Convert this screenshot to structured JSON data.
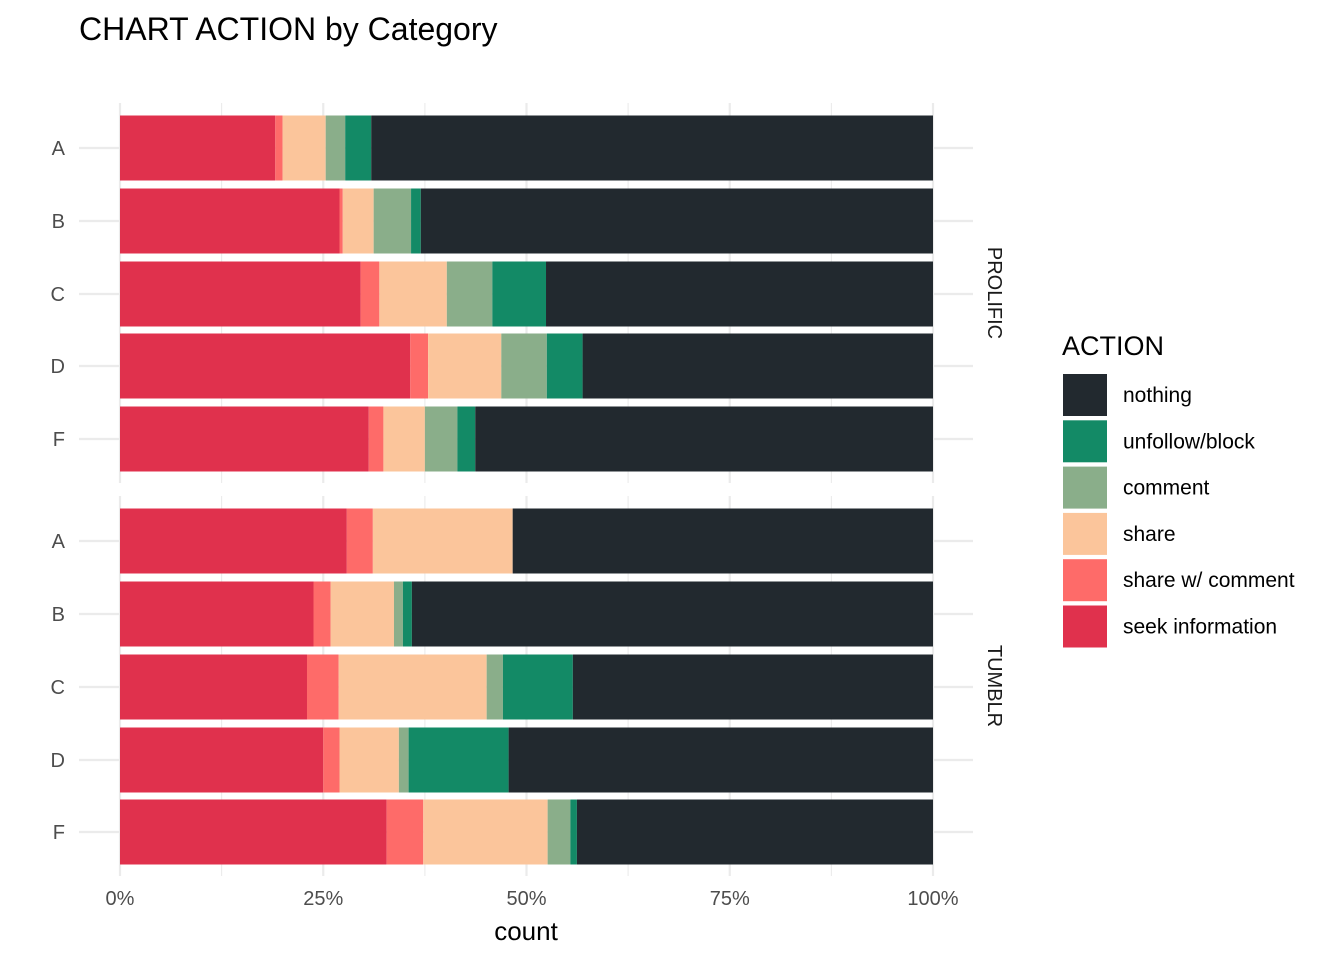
{
  "chart_data": {
    "type": "bar",
    "orientation": "horizontal",
    "stacking": "percent",
    "title": "CHART ACTION by Category",
    "xlabel": "count",
    "ylabel": "",
    "xlim": [
      0,
      100
    ],
    "x_ticks": [
      "0%",
      "25%",
      "50%",
      "75%",
      "100%"
    ],
    "grid": true,
    "legend": {
      "title": "ACTION",
      "position": "right"
    },
    "categories": [
      "A",
      "B",
      "C",
      "D",
      "F"
    ],
    "series": [
      {
        "name": "nothing",
        "color": "#22292f"
      },
      {
        "name": "unfollow/block",
        "color": "#138a66"
      },
      {
        "name": "comment",
        "color": "#8aae8a"
      },
      {
        "name": "share",
        "color": "#fbc59b"
      },
      {
        "name": "share w/ comment",
        "color": "#fe6b69"
      },
      {
        "name": "seek information",
        "color": "#e0314d"
      }
    ],
    "stack_order_left_to_right": [
      "seek information",
      "share w/ comment",
      "share",
      "comment",
      "unfollow/block",
      "nothing"
    ],
    "facets": [
      {
        "label": "PROLIFIC",
        "values": {
          "seek information": [
            19.1,
            27.0,
            29.6,
            35.7,
            30.6
          ],
          "share w/ comment": [
            0.9,
            0.4,
            2.3,
            2.2,
            1.8
          ],
          "share": [
            5.3,
            3.8,
            8.3,
            9.0,
            5.1
          ],
          "comment": [
            2.4,
            4.6,
            5.6,
            5.6,
            4.0
          ],
          "unfollow/block": [
            3.2,
            1.2,
            6.6,
            4.4,
            2.2
          ],
          "nothing": [
            69.1,
            63.0,
            47.6,
            43.1,
            56.3
          ]
        }
      },
      {
        "label": "TUMBLR",
        "values": {
          "seek information": [
            27.9,
            23.8,
            23.0,
            25.0,
            32.8
          ],
          "share w/ comment": [
            3.2,
            2.1,
            3.9,
            2.0,
            4.5
          ],
          "share": [
            17.2,
            7.8,
            18.2,
            7.3,
            15.3
          ],
          "comment": [
            0.0,
            1.1,
            2.0,
            1.2,
            2.8
          ],
          "unfollow/block": [
            0.0,
            1.1,
            8.6,
            12.3,
            0.8
          ],
          "nothing": [
            51.7,
            64.1,
            44.3,
            52.2,
            43.8
          ]
        }
      }
    ]
  },
  "colors": {
    "nothing": "#22292f",
    "unfollow/block": "#138a66",
    "comment": "#8aae8a",
    "share": "#fbc59b",
    "share w/ comment": "#fe6b69",
    "seek information": "#e0314d"
  }
}
